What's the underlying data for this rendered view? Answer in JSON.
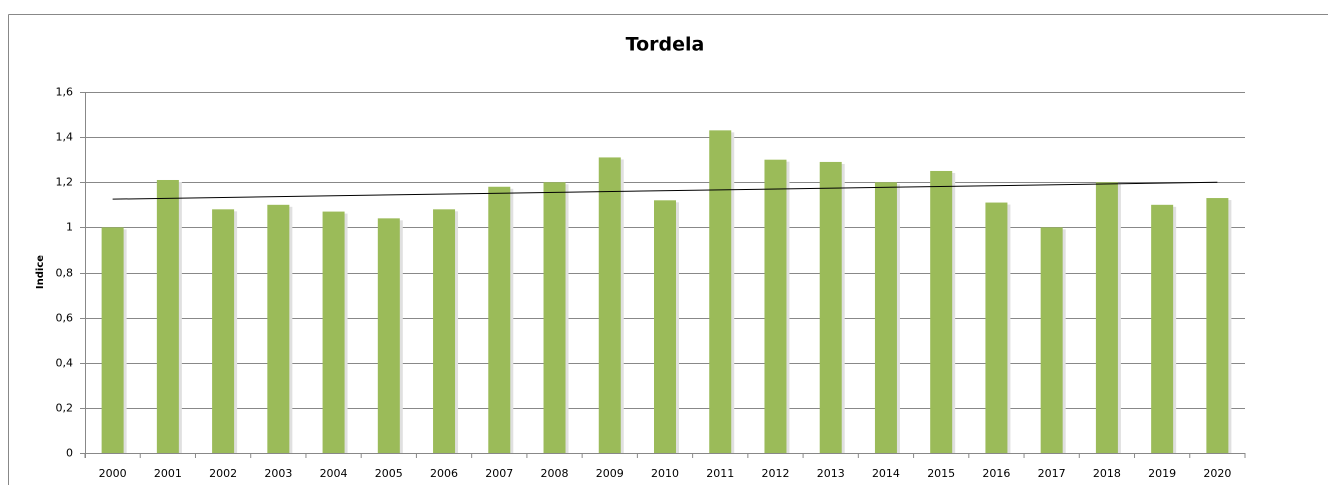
{
  "chart_data": {
    "type": "bar",
    "title": "Tordela",
    "y_label": "Indice",
    "categories": [
      "2000",
      "2001",
      "2002",
      "2003",
      "2004",
      "2005",
      "2006",
      "2007",
      "2008",
      "2009",
      "2010",
      "2011",
      "2012",
      "2013",
      "2014",
      "2015",
      "2016",
      "2017",
      "2018",
      "2019",
      "2020"
    ],
    "values": [
      1.0,
      1.21,
      1.08,
      1.1,
      1.07,
      1.04,
      1.08,
      1.18,
      1.2,
      1.31,
      1.12,
      1.43,
      1.3,
      1.29,
      1.2,
      1.25,
      1.11,
      1.0,
      1.2,
      1.1,
      1.13
    ],
    "color": "#9bbb59",
    "trendline": [
      1.125,
      1.2
    ],
    "trendline_color": "#000000",
    "ylim": [
      0,
      1.6
    ],
    "yticks": [
      0,
      {
        "value": 0.2,
        "label": "0,2"
      },
      {
        "value": 0.4,
        "label": "0,4"
      },
      {
        "value": 0.6,
        "label": "0,6"
      },
      {
        "value": 0.8,
        "label": "0,8"
      },
      1,
      {
        "value": 1.2,
        "label": "1,2"
      },
      {
        "value": 1.4,
        "label": "1,4"
      },
      {
        "value": 1.6,
        "label": "1,6"
      }
    ],
    "grid": true
  }
}
